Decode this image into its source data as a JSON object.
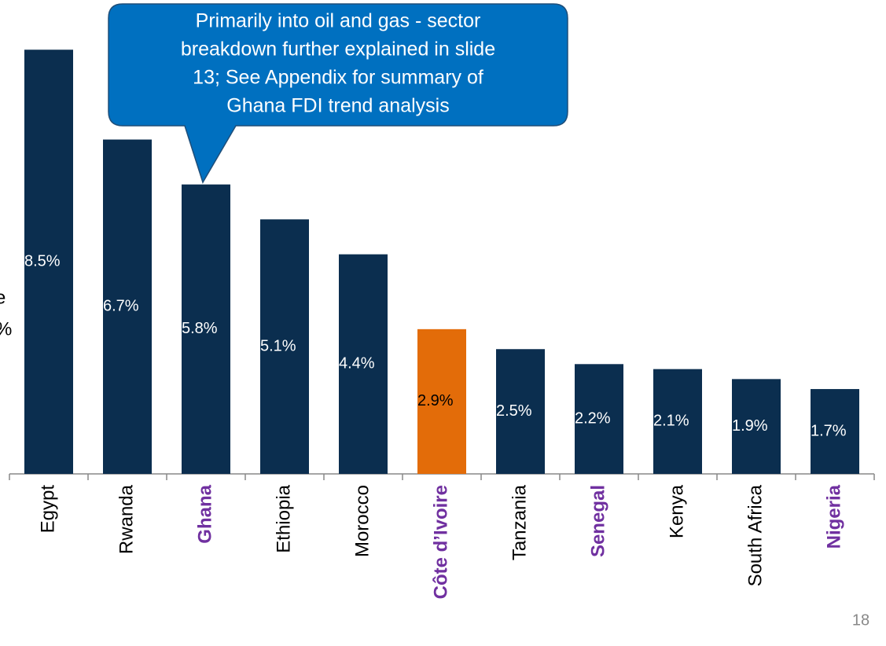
{
  "chart_data": {
    "type": "bar",
    "categories": [
      "Egypt",
      "Rwanda",
      "Ghana",
      "Ethiopia",
      "Morocco",
      "Côte d’Ivoire",
      "Tanzania",
      "Senegal",
      "Kenya",
      "South Africa",
      "Nigeria"
    ],
    "values": [
      8.5,
      6.7,
      5.8,
      5.1,
      4.4,
      2.9,
      2.5,
      2.2,
      2.1,
      1.9,
      1.7
    ],
    "value_labels": [
      "8.5%",
      "6.7%",
      "5.8%",
      "5.1%",
      "4.4%",
      "2.9%",
      "2.5%",
      "2.2%",
      "2.1%",
      "1.9%",
      "1.7%"
    ],
    "colors": [
      "#0b2e4f",
      "#0b2e4f",
      "#0b2e4f",
      "#0b2e4f",
      "#0b2e4f",
      "#e36c09",
      "#0b2e4f",
      "#0b2e4f",
      "#0b2e4f",
      "#0b2e4f",
      "#0b2e4f"
    ],
    "value_label_colors": [
      "#ffffff",
      "#ffffff",
      "#ffffff",
      "#ffffff",
      "#ffffff",
      "#000000",
      "#ffffff",
      "#ffffff",
      "#ffffff",
      "#ffffff",
      "#ffffff"
    ],
    "category_colors": [
      "#000000",
      "#000000",
      "#7030a0",
      "#000000",
      "#000000",
      "#7030a0",
      "#000000",
      "#7030a0",
      "#000000",
      "#000000",
      "#7030a0"
    ],
    "category_bold": [
      false,
      false,
      true,
      false,
      false,
      true,
      false,
      true,
      false,
      false,
      true
    ],
    "ylim": [
      0,
      9
    ],
    "callout": {
      "lines": [
        "Primarily into oil and gas - sector",
        "breakdown further explained in slide",
        "13; See Appendix for summary of",
        "Ghana FDI trend analysis"
      ]
    },
    "left_fragments": [
      "e",
      "%"
    ],
    "page_number": "18"
  }
}
